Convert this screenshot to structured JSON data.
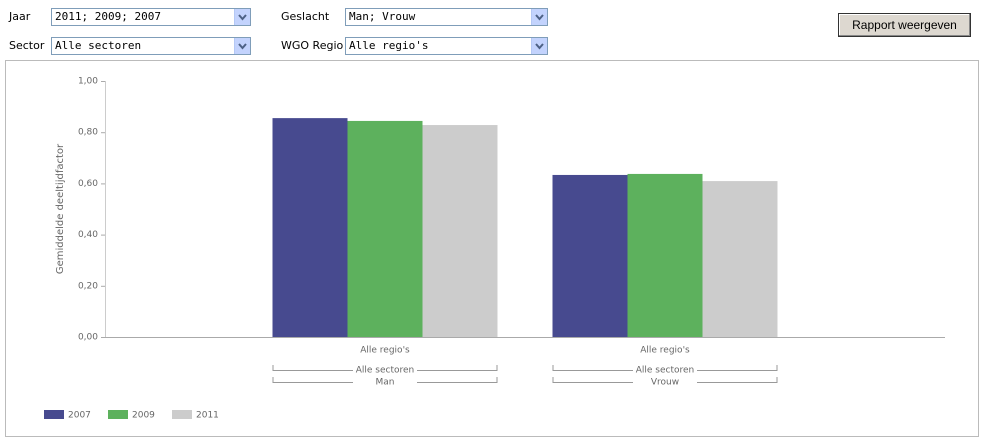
{
  "form": {
    "fields": [
      {
        "label": "Jaar",
        "value": "2011; 2009; 2007"
      },
      {
        "label": "Geslacht",
        "value": "Man; Vrouw"
      },
      {
        "label": "Sector",
        "value": "Alle sectoren"
      },
      {
        "label": "WGO Regio",
        "value": "Alle regio's"
      }
    ],
    "button": "Rapport weergeven"
  },
  "chart_data": {
    "type": "bar",
    "y_label": "Gemiddelde deeltijdfactor",
    "ylim": [
      0,
      1
    ],
    "yticks": [
      {
        "value": 0,
        "label": "0,00"
      },
      {
        "value": 0.2,
        "label": "0,20"
      },
      {
        "value": 0.4,
        "label": "0,40"
      },
      {
        "value": 0.6,
        "label": "0,60"
      },
      {
        "value": 0.8,
        "label": "0,80"
      },
      {
        "value": 1,
        "label": "1,00"
      }
    ],
    "categories": [
      [
        "Alle regio's",
        "Alle sectoren",
        "Man"
      ],
      [
        "Alle regio's",
        "Alle sectoren",
        "Vrouw"
      ]
    ],
    "series": [
      {
        "name": "2007",
        "color": "#474a8f",
        "values": [
          0.855,
          0.633
        ]
      },
      {
        "name": "2009",
        "color": "#5db15d",
        "values": [
          0.844,
          0.637
        ]
      },
      {
        "name": "2011",
        "color": "#cccccc",
        "values": [
          0.828,
          0.609
        ]
      }
    ],
    "legend": "bottom-left"
  }
}
